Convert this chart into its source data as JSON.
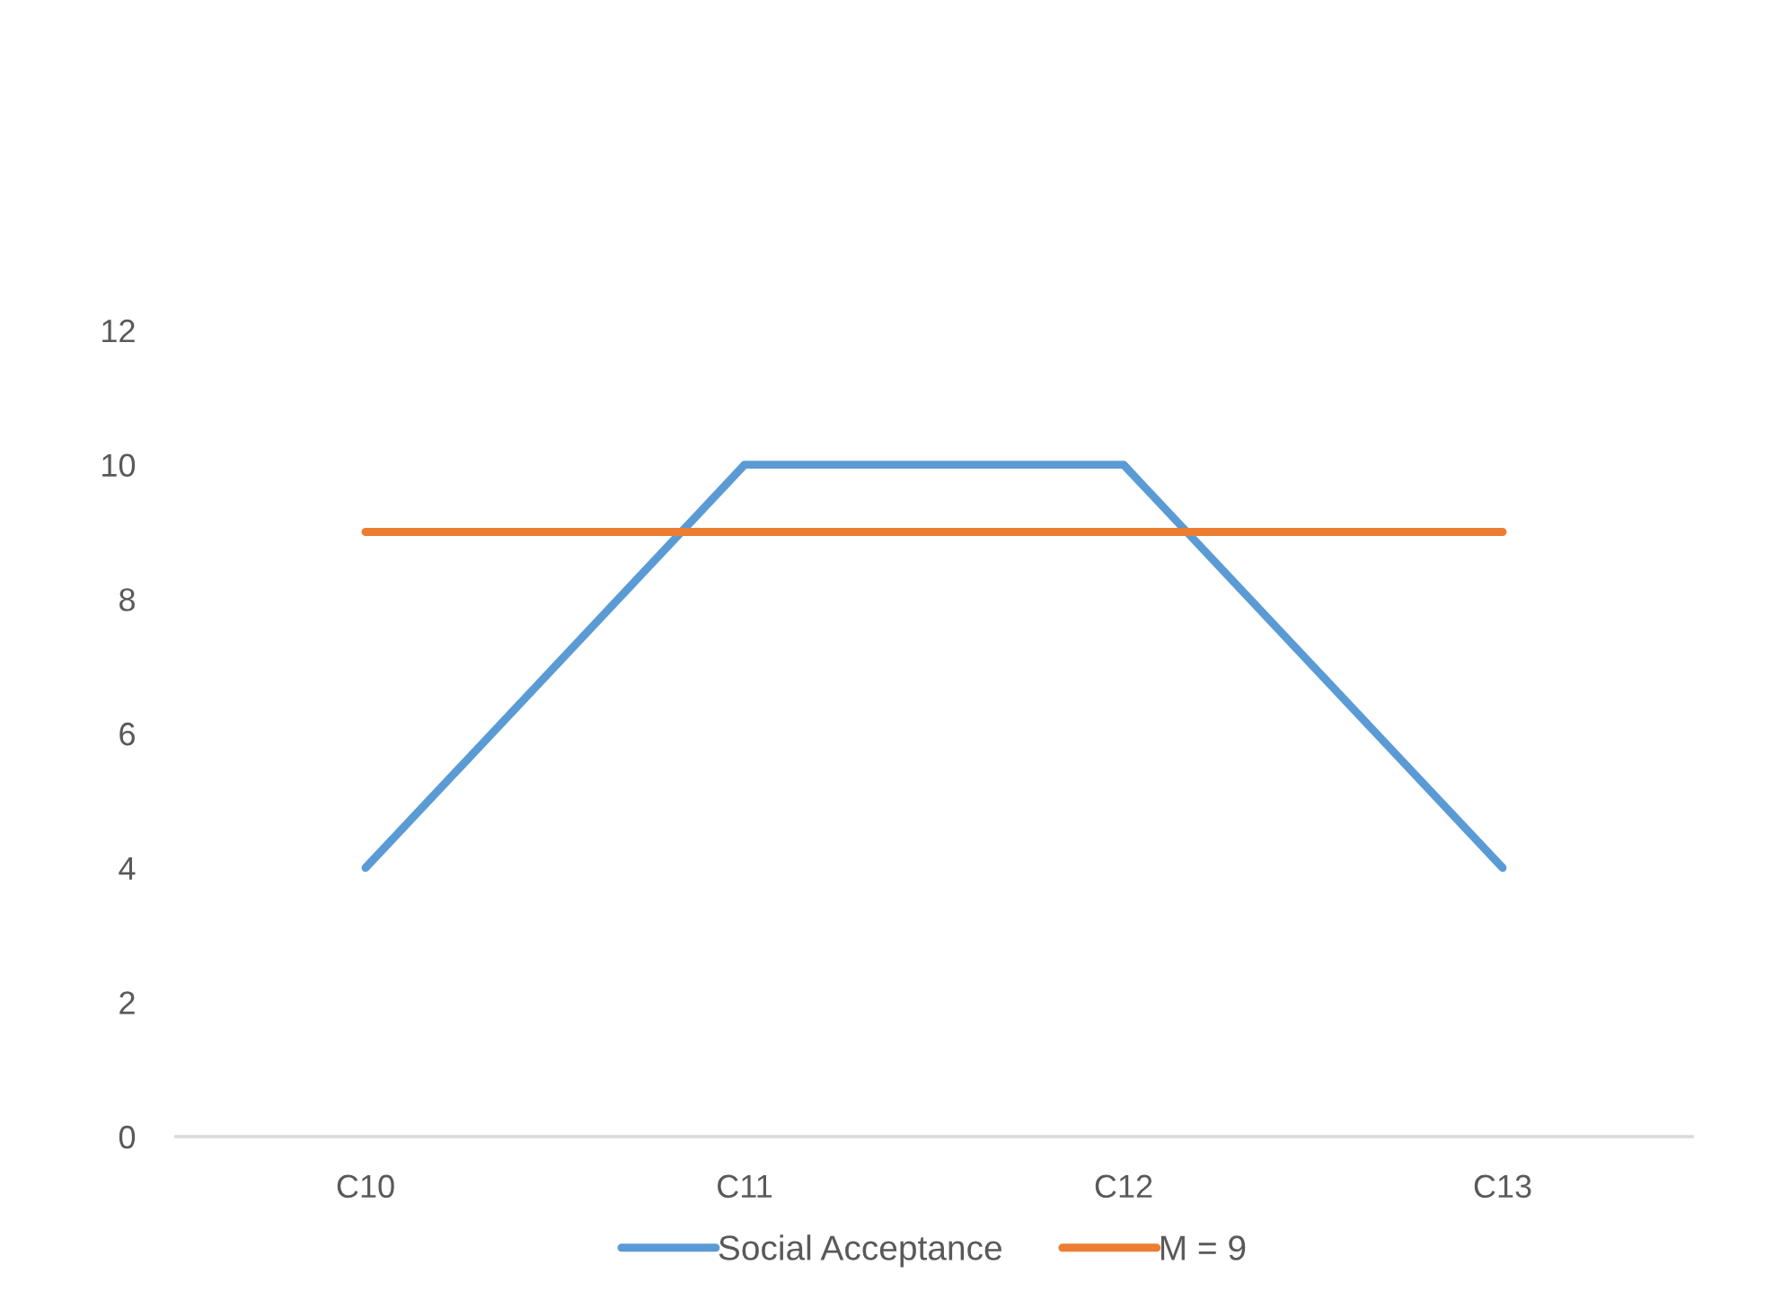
{
  "chart_data": {
    "type": "line",
    "categories": [
      "C10",
      "C11",
      "C12",
      "C13"
    ],
    "series": [
      {
        "name": "Social Acceptance",
        "color": "#5b9bd5",
        "values": [
          4,
          10,
          10,
          4
        ]
      },
      {
        "name": "M = 9",
        "color": "#ed7d31",
        "values": [
          9,
          9,
          9,
          9
        ]
      }
    ],
    "ylim": [
      0,
      12
    ],
    "yticks": [
      0,
      2,
      4,
      6,
      8,
      10,
      12
    ],
    "legend": "bottom",
    "line_style": "solid"
  }
}
